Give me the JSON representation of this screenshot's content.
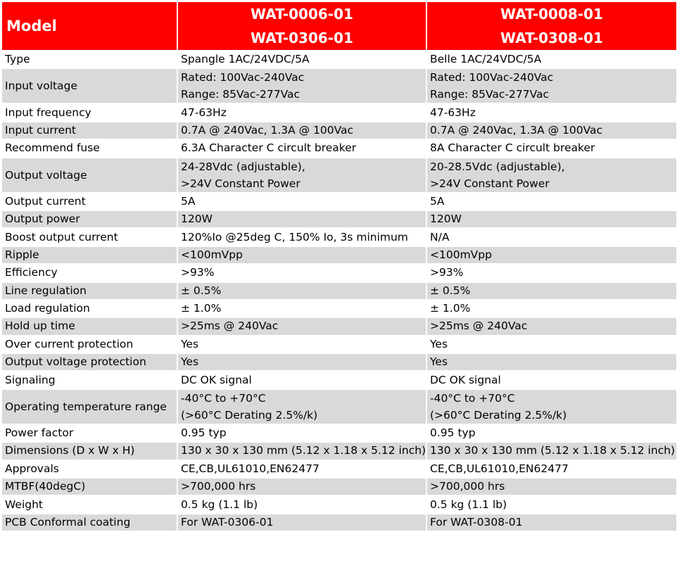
{
  "header": {
    "label": "Model",
    "columns": [
      {
        "line1": "WAT-0006-01",
        "line2": "WAT-0306-01"
      },
      {
        "line1": "WAT-0008-01",
        "line2": "WAT-0308-01"
      }
    ]
  },
  "rows": [
    {
      "label": "Type",
      "a": [
        "Spangle 1AC/24VDC/5A"
      ],
      "b": [
        "Belle 1AC/24VDC/5A"
      ]
    },
    {
      "label": "Input voltage",
      "a": [
        "Rated: 100Vac-240Vac",
        "Range: 85Vac-277Vac"
      ],
      "b": [
        "Rated: 100Vac-240Vac",
        "Range: 85Vac-277Vac"
      ]
    },
    {
      "label": "Input frequency",
      "a": [
        "47-63Hz"
      ],
      "b": [
        "47-63Hz"
      ]
    },
    {
      "label": "Input current",
      "a": [
        "0.7A @ 240Vac, 1.3A @ 100Vac"
      ],
      "b": [
        "0.7A @ 240Vac, 1.3A @ 100Vac"
      ]
    },
    {
      "label": "Recommend fuse",
      "a": [
        "6.3A Character C circult breaker"
      ],
      "b": [
        "8A Character C circult breaker"
      ]
    },
    {
      "label": "Output voltage",
      "a": [
        "24-28Vdc (adjustable),",
        ">24V Constant Power"
      ],
      "b": [
        "20-28.5Vdc (adjustable),",
        ">24V Constant Power"
      ]
    },
    {
      "label": "Output current",
      "a": [
        "5A"
      ],
      "b": [
        "5A"
      ]
    },
    {
      "label": "Output power",
      "a": [
        "120W"
      ],
      "b": [
        "120W"
      ]
    },
    {
      "label": "Boost output current",
      "a": [
        "120%Io @25deg C, 150% Io, 3s minimum"
      ],
      "b": [
        "N/A"
      ]
    },
    {
      "label": "Ripple",
      "a": [
        "<100mVpp"
      ],
      "b": [
        "<100mVpp"
      ]
    },
    {
      "label": "Efficiency",
      "a": [
        ">93%"
      ],
      "b": [
        ">93%"
      ]
    },
    {
      "label": "Line regulation",
      "a": [
        "± 0.5%"
      ],
      "b": [
        "± 0.5%"
      ]
    },
    {
      "label": "Load regulation",
      "a": [
        "± 1.0%"
      ],
      "b": [
        "± 1.0%"
      ]
    },
    {
      "label": "Hold up time",
      "a": [
        ">25ms @ 240Vac"
      ],
      "b": [
        ">25ms @ 240Vac"
      ]
    },
    {
      "label": "Over current protection",
      "a": [
        "Yes"
      ],
      "b": [
        "Yes"
      ]
    },
    {
      "label": "Output voltage protection",
      "a": [
        "Yes"
      ],
      "b": [
        "Yes"
      ]
    },
    {
      "label": "Signaling",
      "a": [
        "DC OK signal"
      ],
      "b": [
        "DC OK signal"
      ]
    },
    {
      "label": "Operating temperature range",
      "a": [
        "-40°C to +70°C",
        "(>60°C Derating 2.5%/k)"
      ],
      "b": [
        "-40°C to +70°C",
        "(>60°C Derating 2.5%/k)"
      ]
    },
    {
      "label": "Power factor",
      "a": [
        "0.95 typ"
      ],
      "b": [
        "0.95 typ"
      ]
    },
    {
      "label": "Dimensions (D x W x H)",
      "a": [
        "130 x 30 x 130 mm (5.12 x 1.18 x 5.12 inch)"
      ],
      "b": [
        "130 x 30 x 130 mm (5.12 x 1.18 x 5.12 inch)"
      ]
    },
    {
      "label": "Approvals",
      "a": [
        "CE,CB,UL61010,EN62477"
      ],
      "b": [
        "CE,CB,UL61010,EN62477"
      ]
    },
    {
      "label": "MTBF(40degC)",
      "a": [
        ">700,000 hrs"
      ],
      "b": [
        ">700,000 hrs"
      ]
    },
    {
      "label": "Weight",
      "a": [
        "0.5 kg (1.1 lb)"
      ],
      "b": [
        "0.5 kg (1.1 lb)"
      ]
    },
    {
      "label": "PCB Conformal coating",
      "a": [
        "For WAT-0306-01"
      ],
      "b": [
        "For WAT-0308-01"
      ]
    }
  ],
  "colors": {
    "header_bg": "#ff0000",
    "header_text": "#ffffff",
    "row_alt_bg": "#d9d9d9",
    "row_bg": "#ffffff"
  }
}
